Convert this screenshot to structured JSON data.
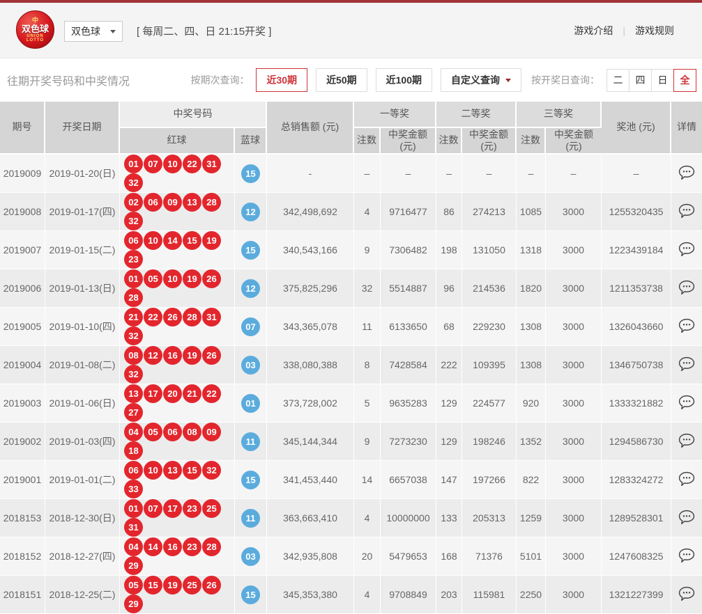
{
  "brand": {
    "coin": "中",
    "logo_zh": "双色球",
    "logo_en1": "UNION",
    "logo_en2": "LOTTO"
  },
  "header": {
    "game_dropdown_value": "双色球",
    "schedule": "[ 每周二、四、日 21:15开奖 ]",
    "link_intro": "游戏介绍",
    "divider": "|",
    "link_rules": "游戏规则"
  },
  "filter": {
    "title": "往期开奖号码和中奖情况",
    "period_query_label": "按期次查询：",
    "period_buttons": [
      {
        "label": "近30期",
        "active": true
      },
      {
        "label": "近50期",
        "active": false
      },
      {
        "label": "近100期",
        "active": false
      }
    ],
    "custom_query_label": "自定义查询",
    "day_query_label": "按开奖日查询：",
    "day_buttons": [
      {
        "label": "二",
        "active": false
      },
      {
        "label": "四",
        "active": false
      },
      {
        "label": "日",
        "active": false
      },
      {
        "label": "全",
        "active": true
      }
    ]
  },
  "table": {
    "headers": {
      "period": "期号",
      "date": "开奖日期",
      "numbers": "中奖号码",
      "red": "红球",
      "blue": "蓝球",
      "sales": "总销售额 (元)",
      "first_prize": "一等奖",
      "second_prize": "二等奖",
      "third_prize": "三等奖",
      "count": "注数",
      "amount": "中奖金额\n(元)",
      "pool": "奖池 (元)",
      "detail": "详情"
    },
    "rows": [
      {
        "period": "2019009",
        "date": "2019-01-20(日)",
        "red": [
          "01",
          "07",
          "10",
          "22",
          "31",
          "32"
        ],
        "blue": "15",
        "sales": "-",
        "p1_count": "–",
        "p1_amount": "–",
        "p2_count": "–",
        "p2_amount": "–",
        "p3_count": "–",
        "p3_amount": "–",
        "pool": "–"
      },
      {
        "period": "2019008",
        "date": "2019-01-17(四)",
        "red": [
          "02",
          "06",
          "09",
          "13",
          "28",
          "32"
        ],
        "blue": "12",
        "sales": "342,498,692",
        "p1_count": "4",
        "p1_amount": "9716477",
        "p2_count": "86",
        "p2_amount": "274213",
        "p3_count": "1085",
        "p3_amount": "3000",
        "pool": "1255320435"
      },
      {
        "period": "2019007",
        "date": "2019-01-15(二)",
        "red": [
          "06",
          "10",
          "14",
          "15",
          "19",
          "23"
        ],
        "blue": "15",
        "sales": "340,543,166",
        "p1_count": "9",
        "p1_amount": "7306482",
        "p2_count": "198",
        "p2_amount": "131050",
        "p3_count": "1318",
        "p3_amount": "3000",
        "pool": "1223439184"
      },
      {
        "period": "2019006",
        "date": "2019-01-13(日)",
        "red": [
          "01",
          "05",
          "10",
          "19",
          "26",
          "28"
        ],
        "blue": "12",
        "sales": "375,825,296",
        "p1_count": "32",
        "p1_amount": "5514887",
        "p2_count": "96",
        "p2_amount": "214536",
        "p3_count": "1820",
        "p3_amount": "3000",
        "pool": "1211353738"
      },
      {
        "period": "2019005",
        "date": "2019-01-10(四)",
        "red": [
          "21",
          "22",
          "26",
          "28",
          "31",
          "32"
        ],
        "blue": "07",
        "sales": "343,365,078",
        "p1_count": "11",
        "p1_amount": "6133650",
        "p2_count": "68",
        "p2_amount": "229230",
        "p3_count": "1308",
        "p3_amount": "3000",
        "pool": "1326043660"
      },
      {
        "period": "2019004",
        "date": "2019-01-08(二)",
        "red": [
          "08",
          "12",
          "16",
          "19",
          "26",
          "32"
        ],
        "blue": "03",
        "sales": "338,080,388",
        "p1_count": "8",
        "p1_amount": "7428584",
        "p2_count": "222",
        "p2_amount": "109395",
        "p3_count": "1308",
        "p3_amount": "3000",
        "pool": "1346750738"
      },
      {
        "period": "2019003",
        "date": "2019-01-06(日)",
        "red": [
          "13",
          "17",
          "20",
          "21",
          "22",
          "27"
        ],
        "blue": "01",
        "sales": "373,728,002",
        "p1_count": "5",
        "p1_amount": "9635283",
        "p2_count": "129",
        "p2_amount": "224577",
        "p3_count": "920",
        "p3_amount": "3000",
        "pool": "1333321882"
      },
      {
        "period": "2019002",
        "date": "2019-01-03(四)",
        "red": [
          "04",
          "05",
          "06",
          "08",
          "09",
          "18"
        ],
        "blue": "11",
        "sales": "345,144,344",
        "p1_count": "9",
        "p1_amount": "7273230",
        "p2_count": "129",
        "p2_amount": "198246",
        "p3_count": "1352",
        "p3_amount": "3000",
        "pool": "1294586730"
      },
      {
        "period": "2019001",
        "date": "2019-01-01(二)",
        "red": [
          "06",
          "10",
          "13",
          "15",
          "32",
          "33"
        ],
        "blue": "15",
        "sales": "341,453,440",
        "p1_count": "14",
        "p1_amount": "6657038",
        "p2_count": "147",
        "p2_amount": "197266",
        "p3_count": "822",
        "p3_amount": "3000",
        "pool": "1283324272"
      },
      {
        "period": "2018153",
        "date": "2018-12-30(日)",
        "red": [
          "01",
          "07",
          "17",
          "23",
          "25",
          "31"
        ],
        "blue": "11",
        "sales": "363,663,410",
        "p1_count": "4",
        "p1_amount": "10000000",
        "p2_count": "133",
        "p2_amount": "205313",
        "p3_count": "1259",
        "p3_amount": "3000",
        "pool": "1289528301"
      },
      {
        "period": "2018152",
        "date": "2018-12-27(四)",
        "red": [
          "04",
          "14",
          "16",
          "23",
          "28",
          "29"
        ],
        "blue": "03",
        "sales": "342,935,808",
        "p1_count": "20",
        "p1_amount": "5479653",
        "p2_count": "168",
        "p2_amount": "71376",
        "p3_count": "5101",
        "p3_amount": "3000",
        "pool": "1247608325"
      },
      {
        "period": "2018151",
        "date": "2018-12-25(二)",
        "red": [
          "05",
          "15",
          "19",
          "25",
          "26",
          "29"
        ],
        "blue": "15",
        "sales": "345,353,380",
        "p1_count": "4",
        "p1_amount": "9708849",
        "p2_count": "203",
        "p2_amount": "115981",
        "p3_count": "2250",
        "p3_amount": "3000",
        "pool": "1321227399"
      }
    ]
  },
  "colors": {
    "accent_red": "#cf3238",
    "topbar_red": "#a23338",
    "red_ball": "#e3262d",
    "blue_ball": "#5bacdd",
    "header_gray": "#d5d5d5"
  }
}
